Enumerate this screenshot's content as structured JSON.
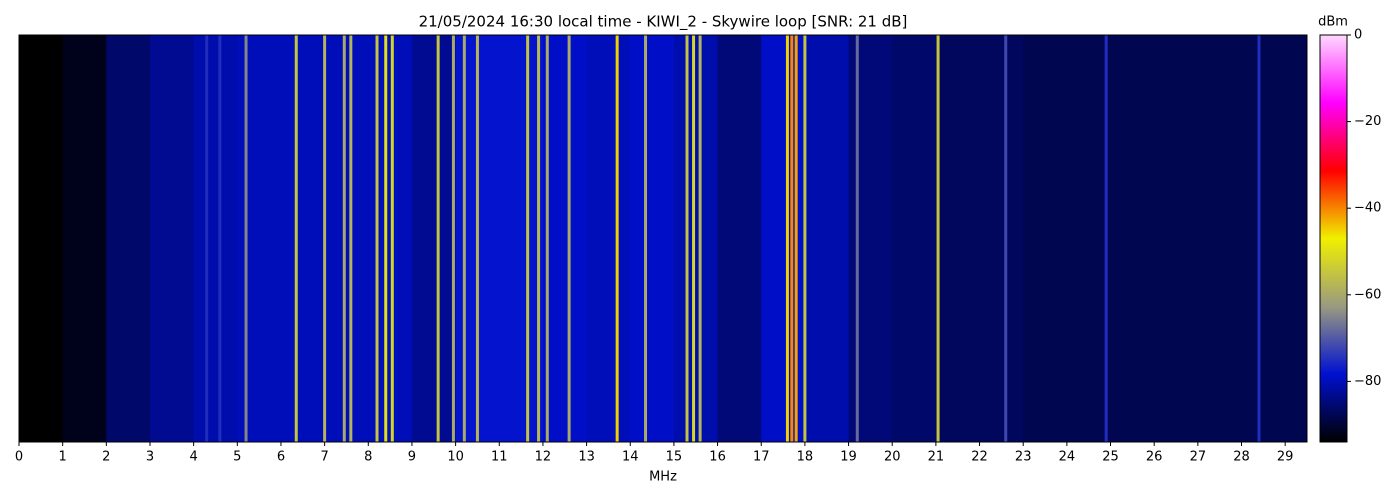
{
  "chart_data": {
    "type": "waterfall",
    "title": "21/05/2024 16:30 local time - KIWI_2 - Skywire loop [SNR: 21 dB]",
    "x_label": "MHz",
    "colorbar_label": "dBm",
    "xlim": [
      0,
      29.5
    ],
    "xticks": [
      0,
      1,
      2,
      3,
      4,
      5,
      6,
      7,
      8,
      9,
      10,
      11,
      12,
      13,
      14,
      15,
      16,
      17,
      18,
      19,
      20,
      21,
      22,
      23,
      24,
      25,
      26,
      27,
      28,
      29
    ],
    "clim": [
      -94,
      0
    ],
    "cticks": [
      0,
      {
        "value": -20,
        "label": "−20"
      },
      {
        "value": -40,
        "label": "−40"
      },
      {
        "value": -60,
        "label": "−60"
      },
      {
        "value": -80,
        "label": "−80"
      }
    ],
    "colormap": [
      "#000000",
      "#0010d0",
      "#9a9a80",
      "#f0f000",
      "#ff0000",
      "#ff00ff",
      "#ffd8ff"
    ],
    "x": [
      0,
      1,
      2,
      3,
      4,
      5,
      6,
      7,
      8,
      9,
      10,
      11,
      12,
      13,
      14,
      15,
      16,
      17,
      18,
      19,
      20,
      21,
      22,
      23,
      24,
      25,
      26,
      27,
      28,
      29
    ],
    "values": [
      -94,
      -92,
      -86,
      -83,
      -81,
      -80,
      -80,
      -80,
      -80,
      -83,
      -78,
      -78,
      -79,
      -80,
      -79,
      -81,
      -85,
      -79,
      -81,
      -85,
      -86,
      -87,
      -87,
      -88,
      -88,
      -88,
      -88,
      -88,
      -88,
      -88
    ],
    "signals": {
      "x": [
        4.3,
        4.6,
        5.2,
        6.35,
        7.0,
        7.45,
        7.6,
        8.2,
        8.4,
        8.55,
        9.6,
        9.95,
        10.2,
        10.5,
        11.65,
        11.9,
        12.1,
        12.6,
        13.7,
        14.35,
        15.3,
        15.45,
        15.6,
        17.6,
        17.7,
        17.8,
        18.0,
        19.2,
        21.05,
        22.6,
        24.9,
        28.4
      ],
      "values": [
        -75,
        -75,
        -65,
        -55,
        -58,
        -60,
        -58,
        -55,
        -50,
        -52,
        -55,
        -60,
        -60,
        -58,
        -55,
        -57,
        -60,
        -60,
        -45,
        -60,
        -55,
        -52,
        -58,
        -45,
        -40,
        -42,
        -55,
        -68,
        -55,
        -72,
        -75,
        -75
      ]
    }
  }
}
